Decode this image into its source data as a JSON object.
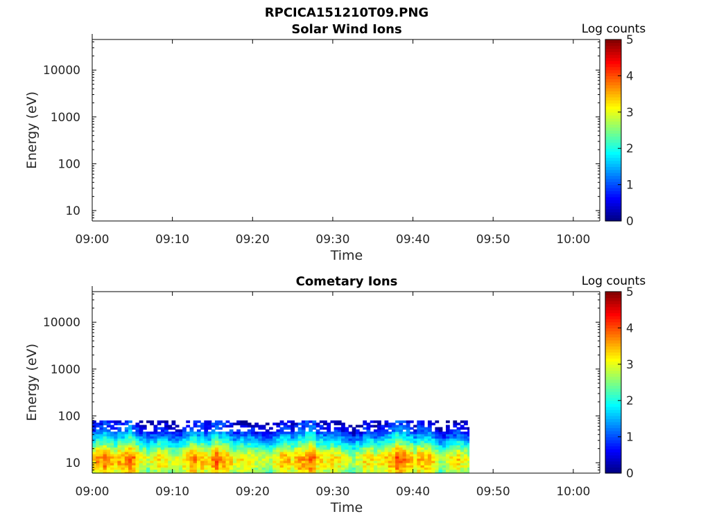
{
  "figure_title": "RPCICA151210T09.PNG",
  "chart_data": [
    {
      "type": "heatmap",
      "title": "Solar Wind Ions",
      "xlabel": "Time",
      "ylabel": "Energy (eV)",
      "x_tick_labels": [
        "09:00",
        "09:10",
        "09:20",
        "09:30",
        "09:40",
        "09:50",
        "10:00"
      ],
      "x_ticks_minutes": [
        0,
        10,
        20,
        30,
        40,
        50,
        60
      ],
      "xlim_minutes": [
        0,
        63.3
      ],
      "y_scale": "log",
      "y_tick_labels": [
        "10",
        "100",
        "1000",
        "10000"
      ],
      "y_ticks": [
        10,
        100,
        1000,
        10000
      ],
      "ylim": [
        6,
        45000
      ],
      "colorbar": {
        "label": "Log counts",
        "ticks": [
          "0",
          "1",
          "2",
          "3",
          "4",
          "5"
        ],
        "range": [
          0,
          5
        ],
        "colormap": "jet"
      },
      "data_present": false,
      "grid": false
    },
    {
      "type": "heatmap",
      "title": "Cometary Ions",
      "xlabel": "Time",
      "ylabel": "Energy (eV)",
      "x_tick_labels": [
        "09:00",
        "09:10",
        "09:20",
        "09:30",
        "09:40",
        "09:50",
        "10:00"
      ],
      "x_ticks_minutes": [
        0,
        10,
        20,
        30,
        40,
        50,
        60
      ],
      "xlim_minutes": [
        0,
        63.3
      ],
      "y_scale": "log",
      "y_tick_labels": [
        "10",
        "100",
        "1000",
        "10000"
      ],
      "y_ticks": [
        10,
        100,
        1000,
        10000
      ],
      "ylim": [
        6,
        45000
      ],
      "colorbar": {
        "label": "Log counts",
        "ticks": [
          "0",
          "1",
          "2",
          "3",
          "4",
          "5"
        ],
        "range": [
          0,
          5
        ],
        "colormap": "jet"
      },
      "data_present": true,
      "data_time_range_minutes": [
        0,
        47
      ],
      "energy_profile": [
        {
          "energy": 6.5,
          "log_counts": 2.8
        },
        {
          "energy": 8,
          "log_counts": 3.1
        },
        {
          "energy": 10,
          "log_counts": 3.2
        },
        {
          "energy": 13,
          "log_counts": 3.3
        },
        {
          "energy": 16,
          "log_counts": 3.0
        },
        {
          "energy": 20,
          "log_counts": 2.6
        },
        {
          "energy": 25,
          "log_counts": 2.1
        },
        {
          "energy": 32,
          "log_counts": 1.6
        },
        {
          "energy": 40,
          "log_counts": 1.2
        },
        {
          "energy": 50,
          "log_counts": 0.8
        },
        {
          "energy": 65,
          "log_counts": 0.5
        },
        {
          "energy": 80,
          "log_counts": 0.3
        }
      ],
      "grid": false
    }
  ]
}
